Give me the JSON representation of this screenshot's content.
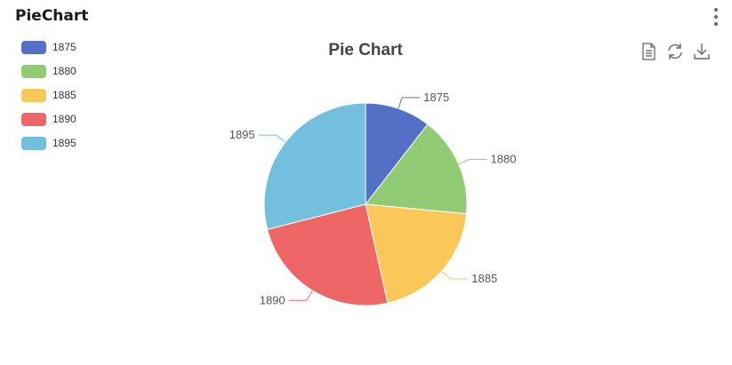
{
  "panel": {
    "title": "PieChart"
  },
  "toolbox": {
    "icons": [
      "data-view-icon",
      "refresh-icon",
      "download-icon"
    ]
  },
  "chart_data": {
    "type": "pie",
    "title": "Pie Chart",
    "legend_position": "top-left",
    "categories": [
      "1875",
      "1880",
      "1885",
      "1890",
      "1895"
    ],
    "values": [
      10.5,
      16,
      20,
      24.5,
      29
    ],
    "colors": [
      "#5470c6",
      "#91cc75",
      "#fac858",
      "#ee6666",
      "#73c0de"
    ]
  }
}
